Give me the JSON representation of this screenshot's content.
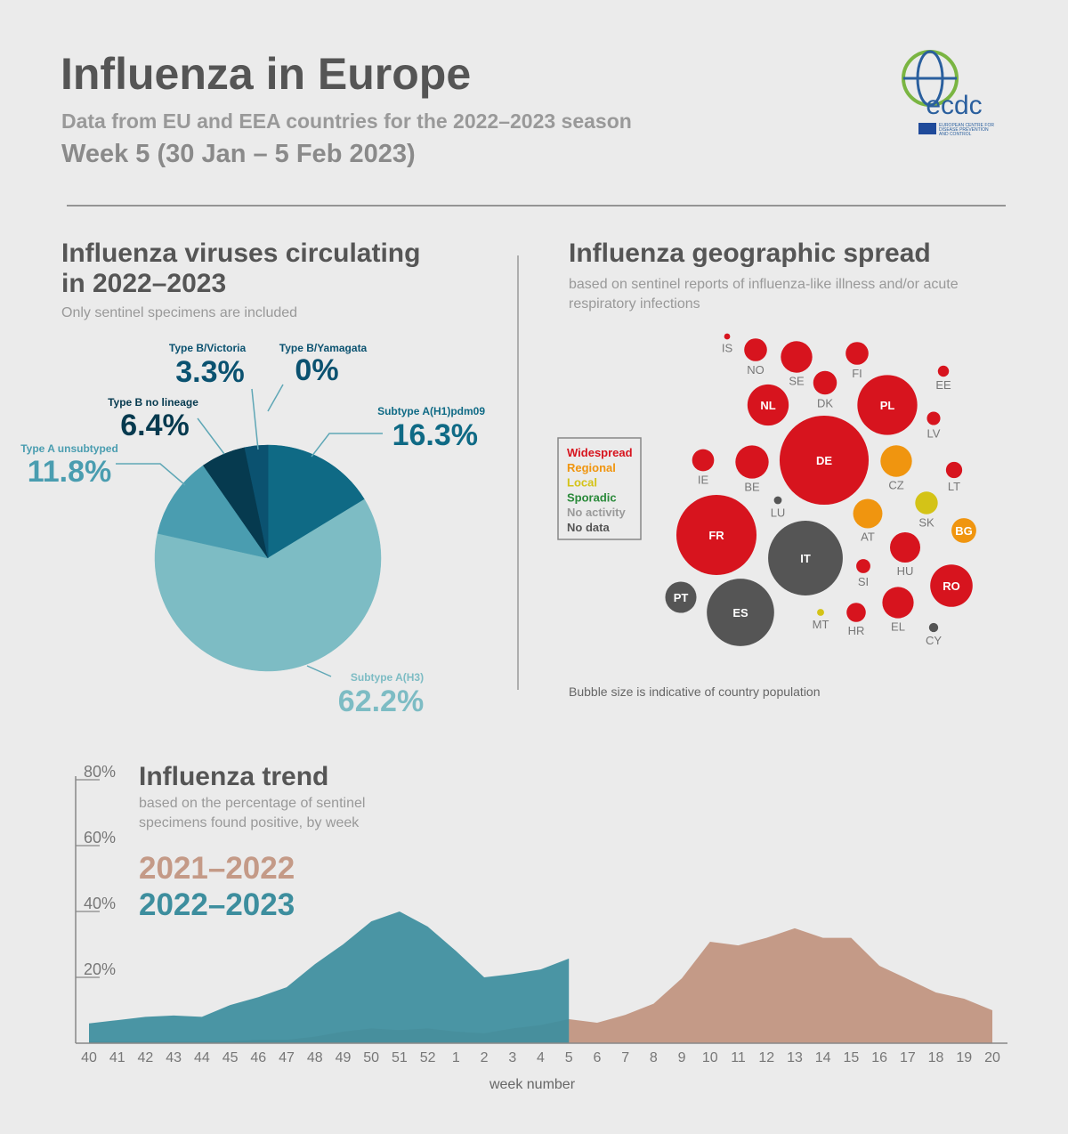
{
  "header": {
    "title": "Influenza in Europe",
    "subtitle": "Data from EU and EEA countries for the 2022–2023 season",
    "week": "Week 5 (30 Jan – 5 Feb 2023)",
    "logo": "ecdc",
    "logo_text": [
      "EUROPEAN CENTRE FOR",
      "DISEASE PREVENTION",
      "AND CONTROL"
    ]
  },
  "chart_data": [
    {
      "type": "pie",
      "title": [
        "Influenza viruses circulating",
        "in 2022–2023"
      ],
      "subtitle": "Only sentinel specimens are included",
      "categories": [
        "Subtype A(H1)pdm09",
        "Subtype A(H3)",
        "Type A unsubtyped",
        "Type B no lineage",
        "Type B/Victoria",
        "Type B/Yamagata"
      ],
      "values": [
        16.3,
        62.2,
        11.8,
        6.4,
        3.3,
        0
      ],
      "value_labels": [
        "16.3%",
        "62.2%",
        "11.8%",
        "6.4%",
        "3.3%",
        "0%"
      ],
      "colors": [
        "#0f6a85",
        "#7dbcc4",
        "#4a9db0",
        "#063a4f",
        "#0b5270",
        "#0b5270"
      ]
    },
    {
      "type": "bubble",
      "title": "Influenza geographic spread",
      "subtitle": [
        "based on sentinel reports of influenza-like illness and/or acute",
        "respiratory infections"
      ],
      "note": "Bubble size is indicative of country population",
      "legend": [
        {
          "name": "Widespread",
          "color": "#d7141e"
        },
        {
          "name": "Regional",
          "color": "#f0950f"
        },
        {
          "name": "Local",
          "color": "#d4c317"
        },
        {
          "name": "Sporadic",
          "color": "#2a8a3a"
        },
        {
          "name": "No activity",
          "color": "#9a9a9a"
        },
        {
          "name": "No data",
          "color": "#555555"
        }
      ],
      "points": [
        {
          "label": "IS",
          "status": "Widespread",
          "size": 0.38
        },
        {
          "label": "NO",
          "status": "Widespread",
          "size": 5.5
        },
        {
          "label": "SE",
          "status": "Widespread",
          "size": 10.5
        },
        {
          "label": "FI",
          "status": "Widespread",
          "size": 5.5
        },
        {
          "label": "EE",
          "status": "Widespread",
          "size": 1.3
        },
        {
          "label": "DK",
          "status": "Widespread",
          "size": 5.9
        },
        {
          "label": "NL",
          "status": "Widespread",
          "size": 18
        },
        {
          "label": "PL",
          "status": "Widespread",
          "size": 38
        },
        {
          "label": "LV",
          "status": "Widespread",
          "size": 1.9
        },
        {
          "label": "IE",
          "status": "Widespread",
          "size": 5.1
        },
        {
          "label": "BE",
          "status": "Widespread",
          "size": 11.7
        },
        {
          "label": "DE",
          "status": "Widespread",
          "size": 84
        },
        {
          "label": "CZ",
          "status": "Regional",
          "size": 10.5
        },
        {
          "label": "LT",
          "status": "Widespread",
          "size": 2.8
        },
        {
          "label": "LU",
          "status": "No data",
          "size": 0.65
        },
        {
          "label": "SK",
          "status": "Local",
          "size": 5.4
        },
        {
          "label": "AT",
          "status": "Regional",
          "size": 9.1
        },
        {
          "label": "BG",
          "status": "Regional",
          "size": 6.5
        },
        {
          "label": "FR",
          "status": "Widespread",
          "size": 68
        },
        {
          "label": "IT",
          "status": "No data",
          "size": 59
        },
        {
          "label": "HU",
          "status": "Widespread",
          "size": 9.7
        },
        {
          "label": "SI",
          "status": "Widespread",
          "size": 2.1
        },
        {
          "label": "RO",
          "status": "Widespread",
          "size": 19
        },
        {
          "label": "PT",
          "status": "No data",
          "size": 10.3
        },
        {
          "label": "ES",
          "status": "No data",
          "size": 48
        },
        {
          "label": "MT",
          "status": "Local",
          "size": 0.52
        },
        {
          "label": "HR",
          "status": "Widespread",
          "size": 3.9
        },
        {
          "label": "EL",
          "status": "Widespread",
          "size": 10.4
        },
        {
          "label": "CY",
          "status": "No data",
          "size": 0.9
        }
      ]
    },
    {
      "type": "area",
      "title": "Influenza trend",
      "subtitle": [
        "based on the percentage of sentinel",
        "specimens found positive, by week"
      ],
      "xlabel": "week number",
      "categories": [
        40,
        41,
        42,
        43,
        44,
        45,
        46,
        47,
        48,
        49,
        50,
        51,
        52,
        1,
        2,
        3,
        4,
        5,
        6,
        7,
        8,
        9,
        10,
        11,
        12,
        13,
        14,
        15,
        16,
        17,
        18,
        19,
        20
      ],
      "ylim": [
        0,
        80
      ],
      "yticks": [
        {
          "value": 20,
          "label": "20%"
        },
        {
          "value": 40,
          "label": "40%"
        },
        {
          "value": 60,
          "label": "60%"
        },
        {
          "value": 80,
          "label": "80%"
        }
      ],
      "series": [
        {
          "name": "2021–2022",
          "color": "#c49a87",
          "values": [
            0.5,
            0.5,
            0.5,
            0.5,
            0.5,
            0.6,
            1,
            1,
            2,
            3.5,
            4.5,
            4,
            4.5,
            3.5,
            3,
            4.5,
            5.5,
            7.3,
            6.2,
            8.6,
            12,
            19.7,
            30.8,
            29.7,
            32,
            34.9,
            32,
            32,
            23.5,
            19.5,
            15.4,
            13.5,
            10
          ]
        },
        {
          "name": "2022–2023",
          "color": "#3d8e9e",
          "values": [
            6,
            7,
            8,
            8.4,
            8,
            11.6,
            14,
            17,
            24,
            30,
            37,
            40,
            35.4,
            28,
            20,
            21,
            22.4,
            25.7,
            null,
            null,
            null,
            null,
            null,
            null,
            null,
            null,
            null,
            null,
            null,
            null,
            null,
            null,
            null
          ]
        }
      ]
    }
  ]
}
